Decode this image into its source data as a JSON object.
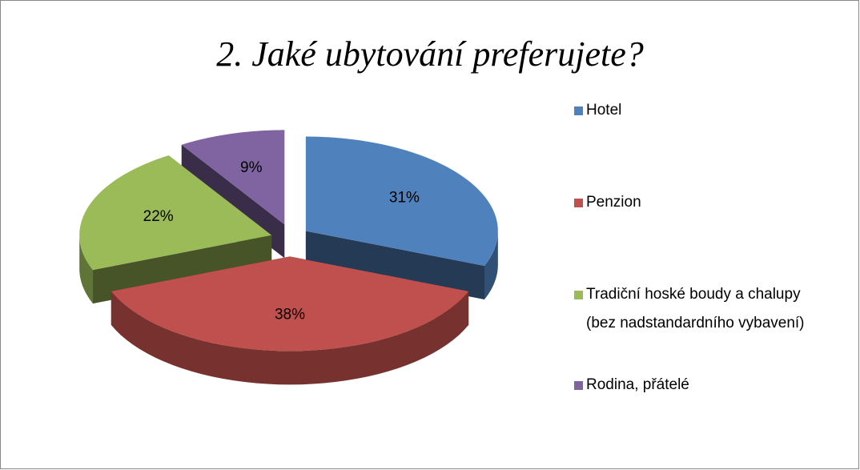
{
  "chart_data": {
    "type": "pie",
    "title": "2. Jaké ubytování preferujete?",
    "categories": [
      "Hotel",
      "Penzion",
      "Tradiční hoské boudy a chalupy (bez nadstandardního vybavení)",
      "Rodina, přátelé"
    ],
    "values": [
      31,
      38,
      22,
      9
    ],
    "value_labels": [
      "31%",
      "38%",
      "22%",
      "9%"
    ],
    "colors": [
      "#4f81bd",
      "#c0504d",
      "#9bbb59",
      "#8064a2"
    ],
    "legend": "right"
  }
}
